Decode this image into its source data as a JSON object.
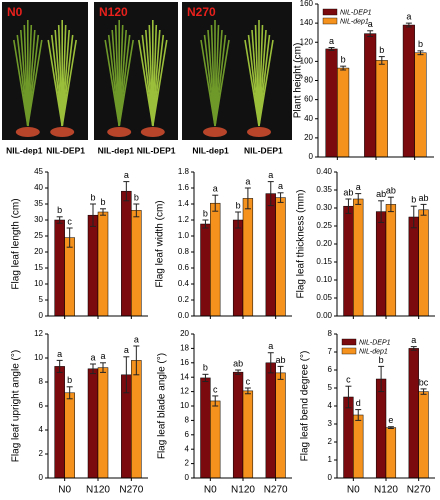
{
  "photos": [
    {
      "label": "N0",
      "captions": [
        "NIL-dep1",
        "NIL-DEP1"
      ]
    },
    {
      "label": "N120",
      "captions": [
        "NIL-dep1",
        "NIL-DEP1"
      ]
    },
    {
      "label": "N270",
      "captions": [
        "NIL-dep1",
        "NIL-DEP1"
      ]
    }
  ],
  "chart_data": [
    {
      "type": "bar",
      "y_label": "Plant height (cm)",
      "categories": [
        null,
        null,
        null
      ],
      "ylim": [
        0,
        160
      ],
      "yticks": [
        0,
        20,
        40,
        60,
        80,
        100,
        120,
        140,
        160
      ],
      "legend": "upper left",
      "series": [
        {
          "name": "NIL-DEP1",
          "color": "#7b0a0e",
          "values": [
            113,
            129,
            138
          ],
          "errors": [
            1.5,
            3,
            2
          ],
          "letters": [
            "a",
            "a",
            "a"
          ]
        },
        {
          "name": "NIL-dep1",
          "color": "#f5921e",
          "values": [
            93,
            101,
            109
          ],
          "errors": [
            2,
            4,
            2
          ],
          "letters": [
            "b",
            "b",
            "b"
          ]
        }
      ]
    },
    {
      "type": "bar",
      "y_label": "Flag leaf length (cm)",
      "categories": [
        null,
        null,
        null
      ],
      "ylim": [
        0,
        45
      ],
      "yticks": [
        0,
        5,
        10,
        15,
        20,
        25,
        30,
        35,
        40,
        45
      ],
      "series": [
        {
          "color": "#7b0a0e",
          "values": [
            30,
            31.5,
            39
          ],
          "errors": [
            1,
            3.5,
            3
          ],
          "letters": [
            "b",
            "b",
            "a"
          ]
        },
        {
          "color": "#f5921e",
          "values": [
            24.5,
            32.5,
            33
          ],
          "errors": [
            3,
            1,
            2
          ],
          "letters": [
            "c",
            "b",
            "b"
          ]
        }
      ]
    },
    {
      "type": "bar",
      "y_label": "Flag leaf width (cm)",
      "categories": [
        null,
        null,
        null
      ],
      "ylim": [
        0,
        1.8
      ],
      "yticks": [
        {
          "value": 0,
          "label": "0.0"
        },
        0.2,
        0.4,
        0.6,
        0.8,
        {
          "value": 1,
          "label": "1.0"
        },
        1.2,
        1.4,
        1.6,
        1.8
      ],
      "series": [
        {
          "color": "#7b0a0e",
          "values": [
            1.15,
            1.2,
            1.53
          ],
          "errors": [
            0.05,
            0.1,
            0.15
          ],
          "letters": [
            "b",
            "b",
            "a"
          ]
        },
        {
          "color": "#f5921e",
          "values": [
            1.41,
            1.47,
            1.48
          ],
          "errors": [
            0.1,
            0.13,
            0.06
          ],
          "letters": [
            "a",
            "a",
            "a"
          ]
        }
      ]
    },
    {
      "type": "bar",
      "y_label": "Flag leaf thickness (mm)",
      "categories": [
        null,
        null,
        null
      ],
      "ylim": [
        0,
        0.4
      ],
      "yticks": [
        {
          "value": 0,
          "label": "0.00"
        },
        {
          "value": 0.05,
          "label": "0.05"
        },
        {
          "value": 0.1,
          "label": "0.10"
        },
        {
          "value": 0.15,
          "label": "0.15"
        },
        {
          "value": 0.2,
          "label": "0.20"
        },
        {
          "value": 0.25,
          "label": "0.25"
        },
        {
          "value": 0.3,
          "label": "0.30"
        },
        {
          "value": 0.35,
          "label": "0.35"
        },
        {
          "value": 0.4,
          "label": "0.40"
        }
      ],
      "series": [
        {
          "color": "#7b0a0e",
          "values": [
            0.305,
            0.29,
            0.275
          ],
          "errors": [
            0.02,
            0.03,
            0.03
          ],
          "letters": [
            "ab",
            "ab",
            "b"
          ]
        },
        {
          "color": "#f5921e",
          "values": [
            0.325,
            0.31,
            0.295
          ],
          "errors": [
            0.015,
            0.02,
            0.015
          ],
          "letters": [
            "a",
            "ab",
            "ab"
          ]
        }
      ]
    },
    {
      "type": "bar",
      "y_label": "Flag leaf upright angle (°)",
      "categories": [
        "N0",
        "N120",
        "N270"
      ],
      "ylim": [
        0,
        12
      ],
      "yticks": [
        0,
        2,
        4,
        6,
        8,
        10,
        12
      ],
      "series": [
        {
          "color": "#7b0a0e",
          "values": [
            9.3,
            9.1,
            8.6
          ],
          "errors": [
            0.5,
            0.4,
            1.5
          ],
          "letters": [
            "a",
            "a",
            "a"
          ]
        },
        {
          "color": "#f5921e",
          "values": [
            7.1,
            9.2,
            9.8
          ],
          "errors": [
            0.5,
            0.4,
            1.2
          ],
          "letters": [
            "b",
            "a",
            "a"
          ]
        }
      ]
    },
    {
      "type": "bar",
      "y_label": "Flag leaf blade angle (°)",
      "categories": [
        "N0",
        "N120",
        "N270"
      ],
      "ylim": [
        0,
        20
      ],
      "yticks": [
        0,
        2,
        4,
        6,
        8,
        10,
        12,
        14,
        16,
        18,
        20
      ],
      "series": [
        {
          "color": "#7b0a0e",
          "values": [
            13.9,
            14.7,
            16
          ],
          "errors": [
            0.5,
            0.3,
            1.4
          ],
          "letters": [
            "b",
            "ab",
            "a"
          ]
        },
        {
          "color": "#f5921e",
          "values": [
            10.7,
            12.1,
            14.6
          ],
          "errors": [
            0.7,
            0.4,
            0.9
          ],
          "letters": [
            "c",
            "c",
            "ab"
          ]
        }
      ]
    },
    {
      "type": "bar",
      "y_label": "Flag leaf bend degree (°)",
      "categories": [
        "N0",
        "N120",
        "N270"
      ],
      "ylim": [
        0,
        8
      ],
      "yticks": [
        0,
        1,
        2,
        3,
        4,
        5,
        6,
        7,
        8
      ],
      "legend": "upper left",
      "series": [
        {
          "name": "NIL-DEP1",
          "color": "#7b0a0e",
          "values": [
            4.5,
            5.5,
            7.2
          ],
          "errors": [
            0.6,
            0.7,
            0.1
          ],
          "letters": [
            "c",
            "b",
            "a"
          ]
        },
        {
          "name": "NIL-dep1",
          "color": "#f5921e",
          "values": [
            3.5,
            2.8,
            4.8
          ],
          "errors": [
            0.3,
            0.05,
            0.15
          ],
          "letters": [
            "d",
            "e",
            "bc"
          ]
        }
      ]
    }
  ]
}
